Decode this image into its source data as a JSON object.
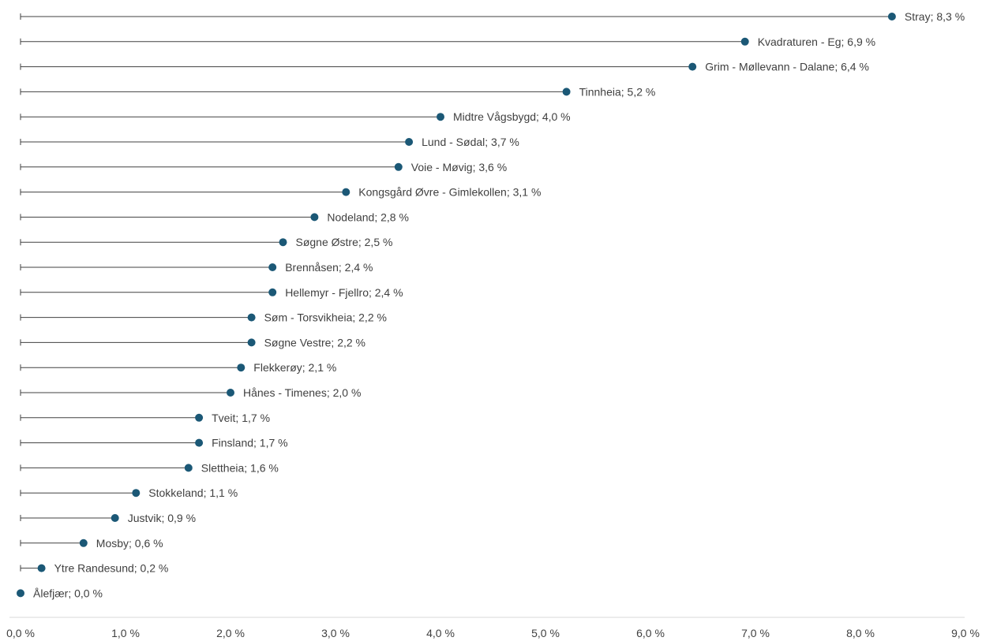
{
  "chart_data": {
    "type": "lollipop",
    "title": "",
    "xlabel": "",
    "ylabel": "",
    "xlim": [
      0,
      9
    ],
    "x_ticks": [
      "0,0 %",
      "1,0 %",
      "2,0 %",
      "3,0 %",
      "4,0 %",
      "5,0 %",
      "6,0 %",
      "7,0 %",
      "8,0 %",
      "9,0 %"
    ],
    "grid": false,
    "legend": "none",
    "marker_color": "#1b5876",
    "line_color": "#404040",
    "axis_color": "#d9d9d9",
    "label_color": "#404040",
    "points": [
      {
        "category": "Stray",
        "value": 8.3,
        "label": "Stray; 8,3 %"
      },
      {
        "category": "Kvadraturen - Eg",
        "value": 6.9,
        "label": "Kvadraturen - Eg; 6,9 %"
      },
      {
        "category": "Grim - Møllevann - Dalane",
        "value": 6.4,
        "label": "Grim - Møllevann - Dalane; 6,4 %"
      },
      {
        "category": "Tinnheia",
        "value": 5.2,
        "label": "Tinnheia; 5,2 %"
      },
      {
        "category": "Midtre Vågsbygd",
        "value": 4.0,
        "label": "Midtre Vågsbygd; 4,0 %"
      },
      {
        "category": "Lund - Sødal",
        "value": 3.7,
        "label": "Lund - Sødal; 3,7 %"
      },
      {
        "category": "Voie - Møvig",
        "value": 3.6,
        "label": "Voie - Møvig; 3,6 %"
      },
      {
        "category": "Kongsgård Øvre - Gimlekollen",
        "value": 3.1,
        "label": "Kongsgård Øvre - Gimlekollen; 3,1 %"
      },
      {
        "category": "Nodeland",
        "value": 2.8,
        "label": "Nodeland; 2,8 %"
      },
      {
        "category": "Søgne Østre",
        "value": 2.5,
        "label": "Søgne Østre; 2,5 %"
      },
      {
        "category": "Brennåsen",
        "value": 2.4,
        "label": "Brennåsen; 2,4 %"
      },
      {
        "category": "Hellemyr - Fjellro",
        "value": 2.4,
        "label": "Hellemyr - Fjellro; 2,4 %"
      },
      {
        "category": "Søm - Torsvikheia",
        "value": 2.2,
        "label": "Søm - Torsvikheia; 2,2 %"
      },
      {
        "category": "Søgne Vestre",
        "value": 2.2,
        "label": "Søgne Vestre; 2,2 %"
      },
      {
        "category": "Flekkerøy",
        "value": 2.1,
        "label": "Flekkerøy; 2,1 %"
      },
      {
        "category": "Hånes - Timenes",
        "value": 2.0,
        "label": "Hånes - Timenes; 2,0 %"
      },
      {
        "category": "Tveit",
        "value": 1.7,
        "label": "Tveit; 1,7 %"
      },
      {
        "category": "Finsland",
        "value": 1.7,
        "label": "Finsland; 1,7 %"
      },
      {
        "category": "Slettheia",
        "value": 1.6,
        "label": "Slettheia; 1,6 %"
      },
      {
        "category": "Stokkeland",
        "value": 1.1,
        "label": "Stokkeland; 1,1 %"
      },
      {
        "category": "Justvik",
        "value": 0.9,
        "label": "Justvik; 0,9 %"
      },
      {
        "category": "Mosby",
        "value": 0.6,
        "label": "Mosby; 0,6 %"
      },
      {
        "category": "Ytre Randesund",
        "value": 0.2,
        "label": "Ytre Randesund; 0,2 %"
      },
      {
        "category": "Ålefjær",
        "value": 0.0,
        "label": "Ålefjær; 0,0 %"
      }
    ]
  }
}
